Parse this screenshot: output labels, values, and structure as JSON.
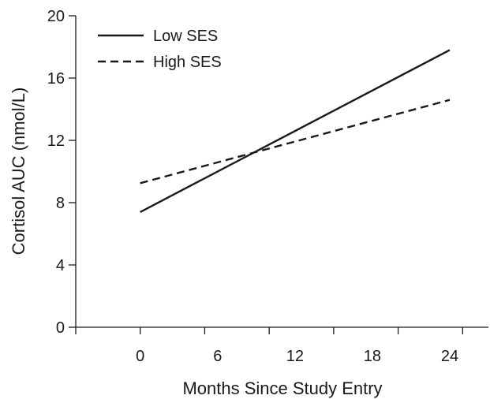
{
  "chart_data": {
    "type": "line",
    "xlabel": "Months Since Study Entry",
    "ylabel": "Cortisol AUC (nmol/L)",
    "xlim": [
      -5,
      27
    ],
    "ylim": [
      0,
      20
    ],
    "x_ticks_minor": [
      -5,
      0,
      5,
      10,
      15,
      20,
      25
    ],
    "x_tick_labels": [
      {
        "x": 0,
        "label": "0"
      },
      {
        "x": 6,
        "label": "6"
      },
      {
        "x": 12,
        "label": "12"
      },
      {
        "x": 18,
        "label": "18"
      },
      {
        "x": 24,
        "label": "24"
      }
    ],
    "y_ticks": [
      0,
      4,
      8,
      12,
      16,
      20
    ],
    "y_tick_labels": [
      "0",
      "4",
      "8",
      "12",
      "16",
      "20"
    ],
    "grid": false,
    "legend_position": "top-left",
    "series": [
      {
        "name": "Low SES",
        "style": "solid",
        "color": "#1a1a1a",
        "x": [
          0,
          24
        ],
        "y": [
          7.4,
          17.8
        ]
      },
      {
        "name": "High SES",
        "style": "dashed",
        "color": "#1a1a1a",
        "x": [
          0,
          24
        ],
        "y": [
          9.25,
          14.6
        ]
      }
    ]
  }
}
